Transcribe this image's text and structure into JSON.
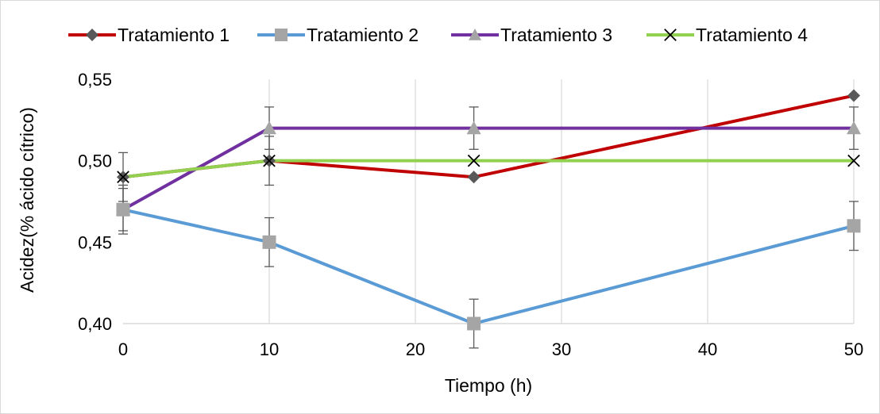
{
  "chart_data": {
    "type": "line",
    "title": "",
    "xlabel": "Tiempo (h)",
    "ylabel": "Acidez(% ácido cítrico)",
    "xlim": [
      0,
      50
    ],
    "ylim": [
      0.4,
      0.55
    ],
    "x_ticks": [
      0,
      10,
      20,
      30,
      40,
      50
    ],
    "x_tick_labels": [
      "0",
      "10",
      "20",
      "30",
      "40",
      "50"
    ],
    "y_ticks": [
      0.4,
      0.45,
      0.5,
      0.55
    ],
    "y_tick_labels": [
      "0,40",
      "0,45",
      "0,50",
      "0,55"
    ],
    "grid": "vertical",
    "legend_position": "top",
    "x": [
      0,
      10,
      24,
      50
    ],
    "series": [
      {
        "name": "Tratamiento 1",
        "color": "#c00000",
        "marker": "diamond",
        "marker_color": "#595959",
        "values": [
          0.49,
          0.5,
          0.49,
          0.54
        ],
        "errors": [
          0.015,
          0.015,
          0,
          0
        ]
      },
      {
        "name": "Tratamiento 2",
        "color": "#5b9bd5",
        "marker": "square",
        "marker_color": "#a5a5a5",
        "values": [
          0.47,
          0.45,
          0.4,
          0.46
        ],
        "errors": [
          0.015,
          0.015,
          0.015,
          0.015
        ]
      },
      {
        "name": "Tratamiento 3",
        "color": "#7030a0",
        "marker": "triangle",
        "marker_color": "#a5a5a5",
        "values": [
          0.47,
          0.52,
          0.52,
          0.52
        ],
        "errors": [
          0.013,
          0.013,
          0.013,
          0.013
        ]
      },
      {
        "name": "Tratamiento 4",
        "color": "#92d050",
        "marker": "x",
        "marker_color": "#000000",
        "values": [
          0.49,
          0.5,
          0.5,
          0.5
        ],
        "errors": [
          0,
          0,
          0,
          0
        ]
      }
    ]
  }
}
